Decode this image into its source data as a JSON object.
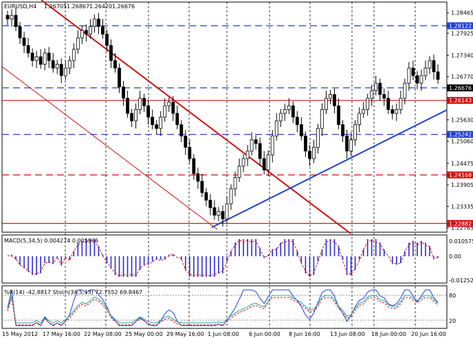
{
  "header": {
    "symbol": "EURUSD,H4",
    "open": "1.26705",
    "high": "1.26867",
    "low": "1.26420",
    "close": "1.26676"
  },
  "main_axis": {
    "ticks": [
      "1.28465",
      "1.27925",
      "1.27340",
      "1.26770",
      "1.25630",
      "1.25060",
      "1.24475",
      "1.23905",
      "1.23335",
      "1.22765"
    ],
    "ylim": [
      1.2265,
      1.2875
    ]
  },
  "levels": [
    {
      "value": "1.28122",
      "color": "#1f3fd8",
      "style": "dash",
      "label_bg": "#1f3fd8"
    },
    {
      "value": "1.26476",
      "color": "#1f3fd8",
      "style": "dash",
      "label_bg": "#1f3fd8"
    },
    {
      "value": "1.26143",
      "color": "#d01010",
      "style": "solid",
      "label_bg": "#d01010"
    },
    {
      "value": "1.25242",
      "color": "#1f3fd8",
      "style": "dash",
      "label_bg": "#1f3fd8"
    },
    {
      "value": "1.24168",
      "color": "#d01010",
      "style": "dash",
      "label_bg": "#d01010"
    },
    {
      "value": "1.22882",
      "color": "#d01010",
      "style": "solid",
      "label_bg": "#d01010"
    }
  ],
  "current_price": "1.26676",
  "x_labels": [
    "15 May 2012",
    "17 May 16:00",
    "22 May 08:00",
    "25 May 00:00",
    "29 May 16:00",
    "1 Jun 08:00",
    "6 Jun 00:00",
    "8 Jun 16:00",
    "13 Jun 08:00",
    "18 Jun 00:00",
    "20 Jun 16:00"
  ],
  "macd": {
    "label": "MACD(5,34,5) 0.004274 0.005596",
    "ticks": [
      "0.010575",
      "0.00",
      "-0.012524"
    ]
  },
  "oscillator": {
    "label": "%R(14) -42.8817   Stoch(34,5,13) 72.7552 69.8467",
    "ticks": [
      "80",
      "20"
    ]
  },
  "colors": {
    "candle": "#000000",
    "macd_hist": "#2a2ad8",
    "macd_signal": "#d01010",
    "wpr": "#1f3fd8",
    "stoch_main": "#2aa0a0",
    "stoch_signal": "#d01010",
    "grid": "#000000"
  },
  "chart_data": {
    "type": "candlestick",
    "close_series": [
      1.283,
      1.284,
      1.281,
      1.278,
      1.276,
      1.274,
      1.272,
      1.273,
      1.271,
      1.274,
      1.272,
      1.27,
      1.271,
      1.268,
      1.27,
      1.272,
      1.275,
      1.278,
      1.28,
      1.279,
      1.281,
      1.283,
      1.281,
      1.279,
      1.276,
      1.272,
      1.27,
      1.265,
      1.262,
      1.258,
      1.256,
      1.259,
      1.262,
      1.26,
      1.257,
      1.255,
      1.254,
      1.257,
      1.26,
      1.261,
      1.258,
      1.255,
      1.252,
      1.249,
      1.246,
      1.242,
      1.24,
      1.237,
      1.235,
      1.233,
      1.231,
      1.232,
      1.23,
      1.234,
      1.238,
      1.241,
      1.244,
      1.246,
      1.248,
      1.251,
      1.25,
      1.246,
      1.243,
      1.247,
      1.252,
      1.256,
      1.258,
      1.259,
      1.26,
      1.257,
      1.255,
      1.252,
      1.248,
      1.246,
      1.249,
      1.254,
      1.259,
      1.262,
      1.263,
      1.26,
      1.255,
      1.252,
      1.248,
      1.251,
      1.255,
      1.258,
      1.259,
      1.262,
      1.264,
      1.266,
      1.263,
      1.262,
      1.259,
      1.258,
      1.259,
      1.262,
      1.266,
      1.27,
      1.268,
      1.266,
      1.268,
      1.27,
      1.272,
      1.269,
      1.267
    ]
  }
}
